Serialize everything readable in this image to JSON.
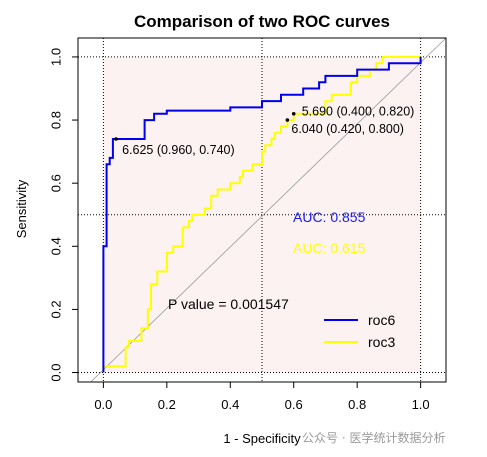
{
  "chart_data": {
    "type": "line",
    "title": "Comparison of two ROC curves",
    "xlabel": "1 - Specificity",
    "ylabel": "Sensitivity",
    "xlim": [
      -0.08,
      1.08
    ],
    "ylim": [
      -0.03,
      1.06
    ],
    "xticks": [
      "0.0",
      "0.2",
      "0.4",
      "0.6",
      "0.8",
      "1.0"
    ],
    "yticks": [
      "0.0",
      "0.2",
      "0.4",
      "0.6",
      "0.8",
      "1.0"
    ],
    "grid": "dotted at 0, 0.5, 1",
    "legend_position": "bottom-right",
    "series": [
      {
        "name": "roc6",
        "color": "#0000ee",
        "points": [
          [
            0,
            0
          ],
          [
            0,
            0.1
          ],
          [
            0,
            0.4
          ],
          [
            0.01,
            0.4
          ],
          [
            0.01,
            0.66
          ],
          [
            0.02,
            0.66
          ],
          [
            0.02,
            0.68
          ],
          [
            0.03,
            0.68
          ],
          [
            0.03,
            0.74
          ],
          [
            0.13,
            0.74
          ],
          [
            0.13,
            0.8
          ],
          [
            0.16,
            0.8
          ],
          [
            0.16,
            0.82
          ],
          [
            0.2,
            0.82
          ],
          [
            0.2,
            0.83
          ],
          [
            0.4,
            0.83
          ],
          [
            0.4,
            0.84
          ],
          [
            0.5,
            0.84
          ],
          [
            0.5,
            0.86
          ],
          [
            0.56,
            0.86
          ],
          [
            0.56,
            0.88
          ],
          [
            0.63,
            0.88
          ],
          [
            0.63,
            0.9
          ],
          [
            0.68,
            0.9
          ],
          [
            0.68,
            0.92
          ],
          [
            0.7,
            0.92
          ],
          [
            0.7,
            0.94
          ],
          [
            0.8,
            0.94
          ],
          [
            0.8,
            0.96
          ],
          [
            0.9,
            0.96
          ],
          [
            0.9,
            0.98
          ],
          [
            1.0,
            0.98
          ],
          [
            1.0,
            1.0
          ]
        ]
      },
      {
        "name": "roc3",
        "color": "#ffff00",
        "points": [
          [
            0,
            0
          ],
          [
            0,
            0.02
          ],
          [
            0.07,
            0.02
          ],
          [
            0.07,
            0.08
          ],
          [
            0.08,
            0.08
          ],
          [
            0.08,
            0.1
          ],
          [
            0.12,
            0.1
          ],
          [
            0.12,
            0.14
          ],
          [
            0.14,
            0.14
          ],
          [
            0.14,
            0.2
          ],
          [
            0.15,
            0.2
          ],
          [
            0.15,
            0.28
          ],
          [
            0.17,
            0.28
          ],
          [
            0.17,
            0.32
          ],
          [
            0.2,
            0.32
          ],
          [
            0.2,
            0.38
          ],
          [
            0.22,
            0.38
          ],
          [
            0.22,
            0.4
          ],
          [
            0.25,
            0.4
          ],
          [
            0.25,
            0.46
          ],
          [
            0.27,
            0.46
          ],
          [
            0.27,
            0.48
          ],
          [
            0.28,
            0.48
          ],
          [
            0.28,
            0.5
          ],
          [
            0.32,
            0.5
          ],
          [
            0.32,
            0.52
          ],
          [
            0.34,
            0.52
          ],
          [
            0.34,
            0.56
          ],
          [
            0.36,
            0.56
          ],
          [
            0.36,
            0.58
          ],
          [
            0.4,
            0.58
          ],
          [
            0.4,
            0.6
          ],
          [
            0.43,
            0.6
          ],
          [
            0.43,
            0.62
          ],
          [
            0.44,
            0.62
          ],
          [
            0.44,
            0.64
          ],
          [
            0.47,
            0.64
          ],
          [
            0.47,
            0.66
          ],
          [
            0.5,
            0.66
          ],
          [
            0.5,
            0.7
          ],
          [
            0.51,
            0.7
          ],
          [
            0.51,
            0.72
          ],
          [
            0.53,
            0.72
          ],
          [
            0.53,
            0.74
          ],
          [
            0.54,
            0.74
          ],
          [
            0.54,
            0.76
          ],
          [
            0.56,
            0.76
          ],
          [
            0.56,
            0.78
          ],
          [
            0.58,
            0.78
          ],
          [
            0.58,
            0.8
          ],
          [
            0.6,
            0.8
          ],
          [
            0.6,
            0.82
          ],
          [
            0.7,
            0.82
          ],
          [
            0.7,
            0.86
          ],
          [
            0.72,
            0.86
          ],
          [
            0.72,
            0.88
          ],
          [
            0.78,
            0.88
          ],
          [
            0.78,
            0.92
          ],
          [
            0.8,
            0.92
          ],
          [
            0.8,
            0.94
          ],
          [
            0.84,
            0.94
          ],
          [
            0.84,
            0.96
          ],
          [
            0.86,
            0.96
          ],
          [
            0.86,
            0.98
          ],
          [
            0.88,
            0.98
          ],
          [
            0.88,
            1.0
          ],
          [
            1.0,
            1.0
          ]
        ]
      }
    ],
    "threshold_points": [
      {
        "label": "6.625 (0.960, 0.740)",
        "x": 0.04,
        "y": 0.74
      },
      {
        "label": "5.690 (0.400, 0.820)",
        "x": 0.6,
        "y": 0.82
      },
      {
        "label": "6.040 (0.420, 0.800)",
        "x": 0.58,
        "y": 0.8
      }
    ],
    "annotations": {
      "auc1": "AUC: 0.855",
      "auc2": "AUC: 0.615",
      "pvalue": "P value = 0.001547"
    }
  },
  "watermark": "公众号 · 医学统计数据分析"
}
